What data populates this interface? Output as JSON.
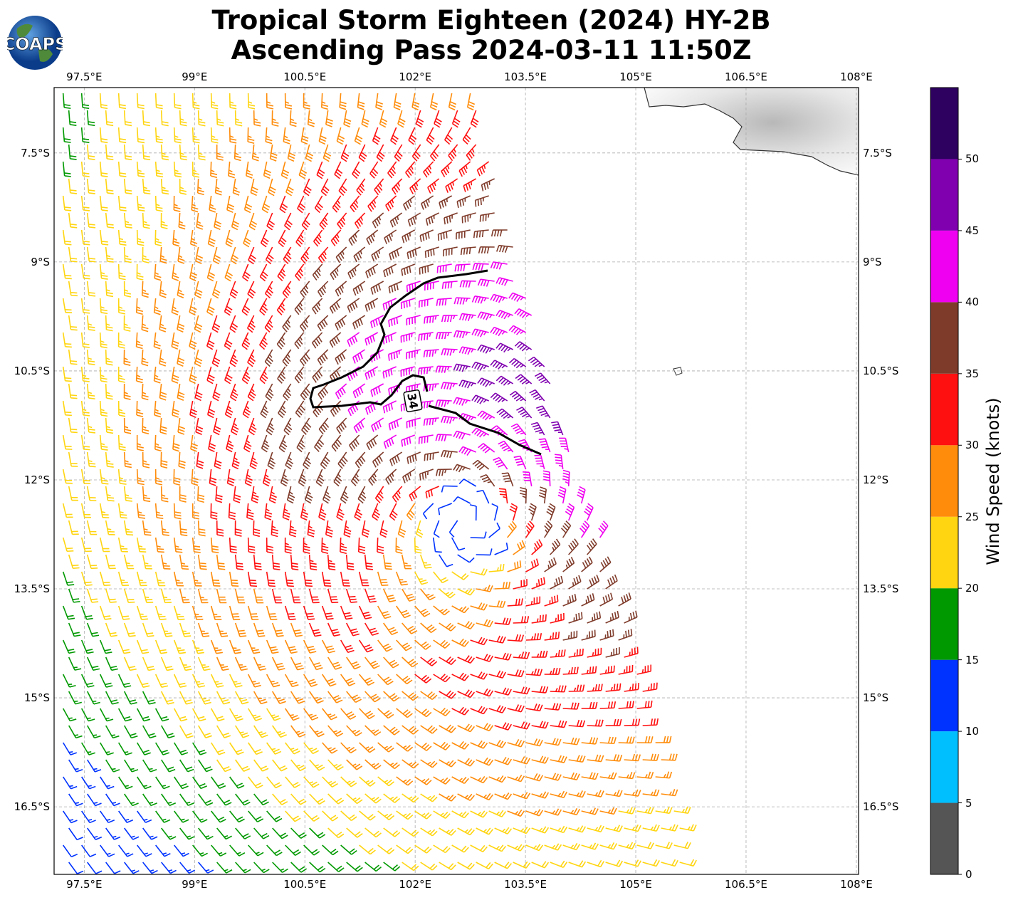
{
  "title_line1": "Tropical Storm Eighteen (2024) HY-2B",
  "title_line2": "Ascending Pass 2024-03-11 11:50Z",
  "logo_text": "COAPS",
  "chart_data": {
    "type": "wind-barb-map",
    "lon_ticks": [
      "97.5°E",
      "99°E",
      "100.5°E",
      "102°E",
      "103.5°E",
      "105°E",
      "106.5°E",
      "108°E"
    ],
    "lon_values": [
      97.5,
      99,
      100.5,
      102,
      103.5,
      105,
      106.5,
      108
    ],
    "lat_ticks": [
      "7.5°S",
      "9°S",
      "10.5°S",
      "12°S",
      "13.5°S",
      "15°S",
      "16.5°S"
    ],
    "lat_values": [
      -7.5,
      -9,
      -10.5,
      -12,
      -13.5,
      -15,
      -16.5
    ],
    "lon_range": [
      97.09,
      108.03
    ],
    "lat_range": [
      -6.6,
      -17.43
    ],
    "contour_label": "34",
    "storm_center": {
      "lon": 102.8,
      "lat": -12.5
    },
    "colorbar": {
      "label": "Wind Speed (knots)",
      "ticks": [
        "0",
        "5",
        "10",
        "15",
        "20",
        "25",
        "30",
        "35",
        "40",
        "45",
        "50"
      ],
      "range": [
        0,
        55
      ],
      "bins": [
        {
          "min": 0,
          "max": 5,
          "color": "#555555"
        },
        {
          "min": 5,
          "max": 10,
          "color": "#00bfff"
        },
        {
          "min": 10,
          "max": 15,
          "color": "#0033ff"
        },
        {
          "min": 15,
          "max": 20,
          "color": "#009900"
        },
        {
          "min": 20,
          "max": 25,
          "color": "#ffd511"
        },
        {
          "min": 25,
          "max": 30,
          "color": "#ff8c0a"
        },
        {
          "min": 30,
          "max": 35,
          "color": "#ff1010"
        },
        {
          "min": 35,
          "max": 40,
          "color": "#7f3b2a"
        },
        {
          "min": 40,
          "max": 45,
          "color": "#f000f0"
        },
        {
          "min": 45,
          "max": 50,
          "color": "#8000b0"
        },
        {
          "min": 50,
          "max": 55,
          "color": "#2e0060"
        }
      ]
    }
  }
}
